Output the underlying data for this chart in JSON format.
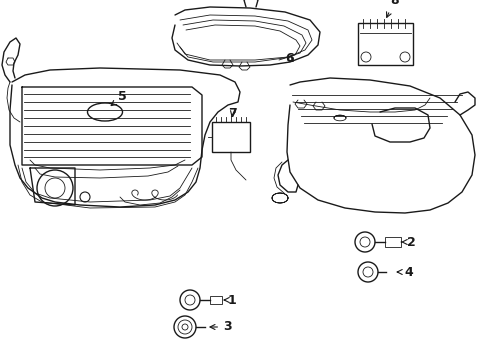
{
  "background_color": "#ffffff",
  "line_color": "#1a1a1a",
  "line_width": 1.0,
  "thin_lw": 0.6,
  "label_fontsize": 9,
  "figsize": [
    4.89,
    3.6
  ],
  "dpi": 100
}
